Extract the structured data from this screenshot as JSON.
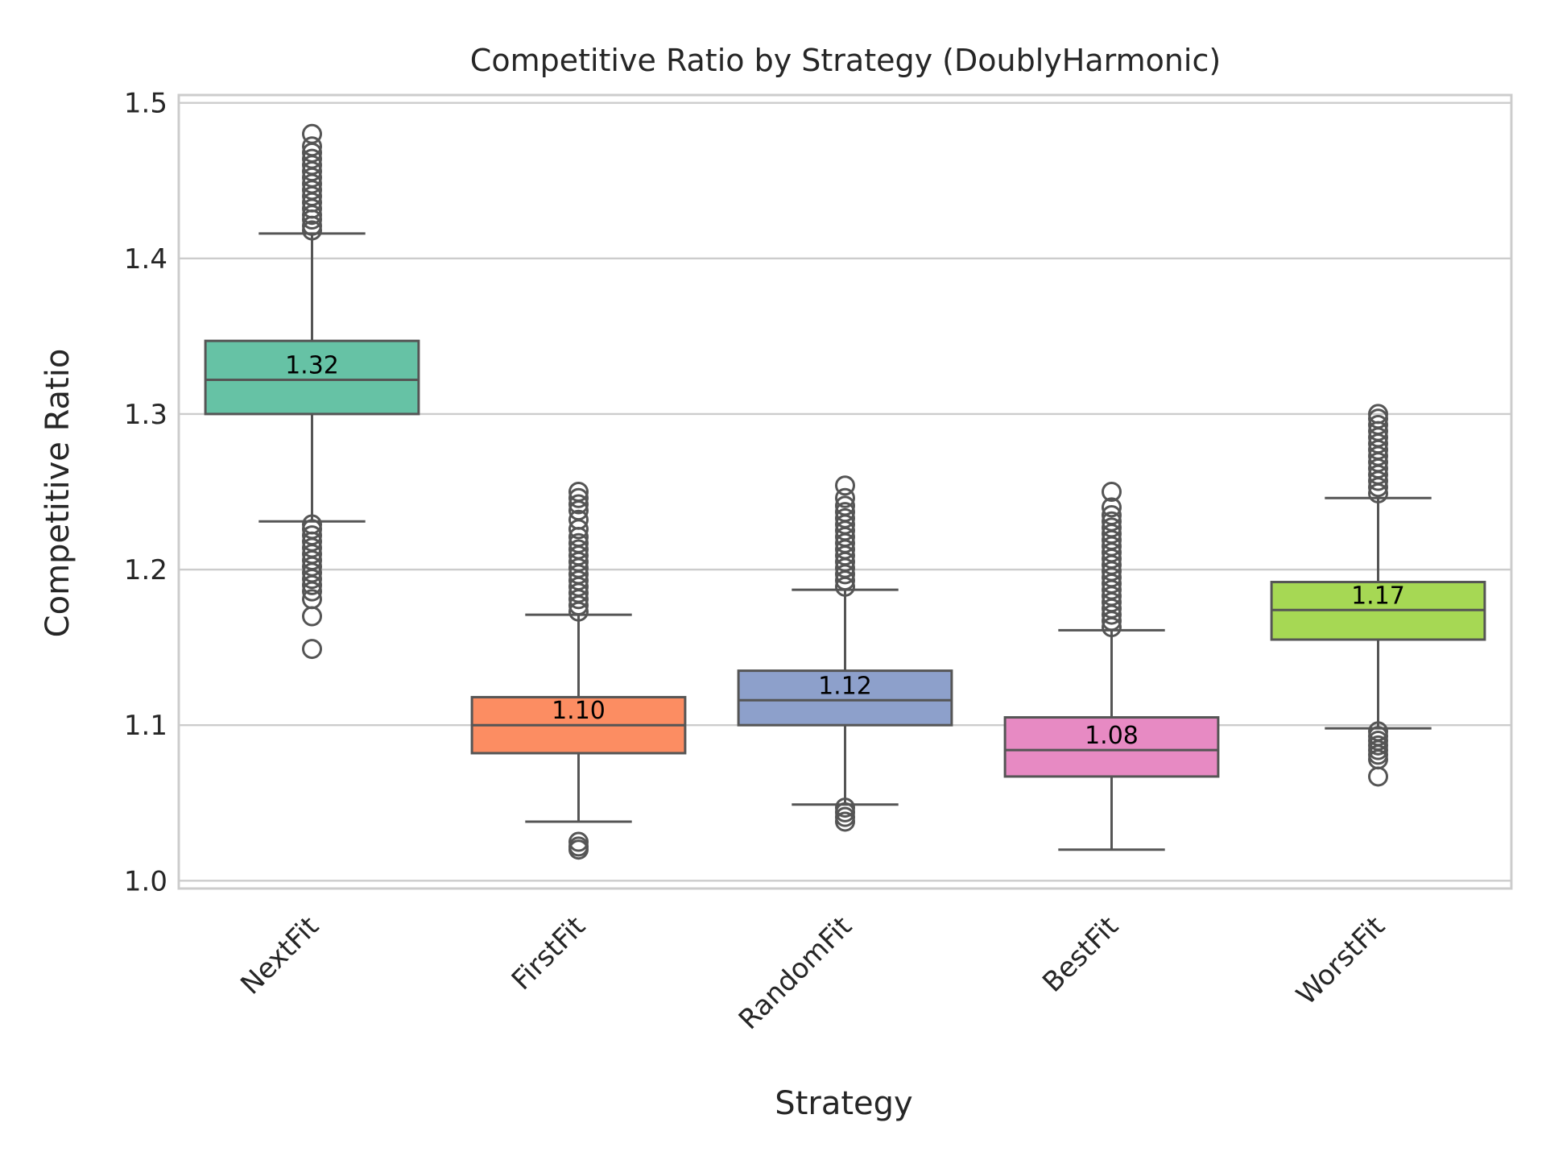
{
  "chart_data": {
    "type": "box",
    "title": "Competitive Ratio by Strategy (DoublyHarmonic)",
    "xlabel": "Strategy",
    "ylabel": "Competitive Ratio",
    "ylim": [
      0.995,
      1.505
    ],
    "yticks": [
      1.0,
      1.1,
      1.2,
      1.3,
      1.4,
      1.5
    ],
    "ytick_labels": [
      "1.0",
      "1.1",
      "1.2",
      "1.3",
      "1.4",
      "1.5"
    ],
    "grid": "horizontal",
    "categories": [
      "NextFit",
      "FirstFit",
      "RandomFit",
      "BestFit",
      "WorstFit"
    ],
    "colors": [
      "#66c2a5",
      "#fc8d62",
      "#8da0cb",
      "#e78ac3",
      "#a6d854"
    ],
    "edge_color": "#555555",
    "boxes": [
      {
        "name": "NextFit",
        "whislo": 1.231,
        "q1": 1.3,
        "median": 1.322,
        "q3": 1.347,
        "whishi": 1.416,
        "median_label": "1.32",
        "fliers_high": [
          1.418,
          1.421,
          1.425,
          1.428,
          1.432,
          1.436,
          1.44,
          1.444,
          1.448,
          1.452,
          1.456,
          1.46,
          1.464,
          1.468,
          1.472,
          1.48
        ],
        "fliers_low": [
          1.229,
          1.226,
          1.222,
          1.218,
          1.214,
          1.21,
          1.206,
          1.202,
          1.198,
          1.194,
          1.19,
          1.186,
          1.181,
          1.17,
          1.149
        ]
      },
      {
        "name": "FirstFit",
        "whislo": 1.038,
        "q1": 1.082,
        "median": 1.1,
        "q3": 1.118,
        "whishi": 1.171,
        "median_label": "1.10",
        "fliers_high": [
          1.173,
          1.177,
          1.181,
          1.185,
          1.189,
          1.193,
          1.197,
          1.201,
          1.205,
          1.209,
          1.213,
          1.217,
          1.221,
          1.226,
          1.232,
          1.238,
          1.242,
          1.246,
          1.25
        ],
        "fliers_low": [
          1.025,
          1.022,
          1.02
        ]
      },
      {
        "name": "RandomFit",
        "whislo": 1.049,
        "q1": 1.1,
        "median": 1.116,
        "q3": 1.135,
        "whishi": 1.187,
        "median_label": "1.12",
        "fliers_high": [
          1.189,
          1.193,
          1.197,
          1.201,
          1.205,
          1.209,
          1.213,
          1.217,
          1.221,
          1.225,
          1.229,
          1.233,
          1.237,
          1.241,
          1.246,
          1.254
        ],
        "fliers_low": [
          1.047,
          1.044,
          1.041,
          1.038
        ]
      },
      {
        "name": "BestFit",
        "whislo": 1.02,
        "q1": 1.067,
        "median": 1.084,
        "q3": 1.105,
        "whishi": 1.161,
        "median_label": "1.08",
        "fliers_high": [
          1.163,
          1.167,
          1.171,
          1.175,
          1.179,
          1.183,
          1.187,
          1.191,
          1.195,
          1.199,
          1.203,
          1.207,
          1.211,
          1.215,
          1.219,
          1.223,
          1.227,
          1.231,
          1.235,
          1.24,
          1.25
        ],
        "fliers_low": []
      },
      {
        "name": "WorstFit",
        "whislo": 1.098,
        "q1": 1.155,
        "median": 1.174,
        "q3": 1.192,
        "whishi": 1.246,
        "median_label": "1.17",
        "fliers_high": [
          1.249,
          1.253,
          1.257,
          1.261,
          1.265,
          1.269,
          1.273,
          1.277,
          1.281,
          1.285,
          1.289,
          1.293,
          1.297,
          1.3
        ],
        "fliers_low": [
          1.096,
          1.093,
          1.09,
          1.087,
          1.084,
          1.081,
          1.078,
          1.067
        ]
      }
    ]
  }
}
